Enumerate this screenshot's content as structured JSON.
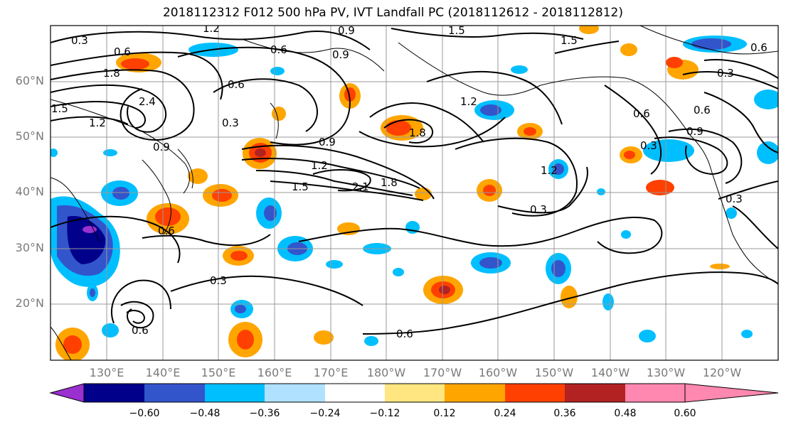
{
  "title": "2018112312 F012 500 hPa PV, IVT Landfall PC (2018112612 - 2018112812)",
  "lat_labels": [
    "60°N",
    "50°N",
    "40°N",
    "30°N",
    "20°N"
  ],
  "lon_labels": [
    "130°E",
    "140°E",
    "150°E",
    "160°E",
    "170°E",
    "180°W",
    "170°W",
    "160°W",
    "150°W",
    "140°W",
    "130°W",
    "120°W"
  ],
  "contour_labels": [
    "0.3",
    "0.6",
    "0.9",
    "1.2",
    "1.5",
    "1.8",
    "2.1",
    "2.4"
  ],
  "colorbar": {
    "tick_labels": [
      "−0.60",
      "−0.48",
      "−0.36",
      "−0.24",
      "−0.12",
      "0.12",
      "0.24",
      "0.36",
      "0.48",
      "0.60"
    ],
    "colors": [
      "#9b30d0",
      "#00008b",
      "#3355cc",
      "#00bfff",
      "#b0e2ff",
      "#ffffff",
      "#ffe680",
      "#ffa500",
      "#ff4000",
      "#b22222",
      "#ff88b0"
    ]
  }
}
